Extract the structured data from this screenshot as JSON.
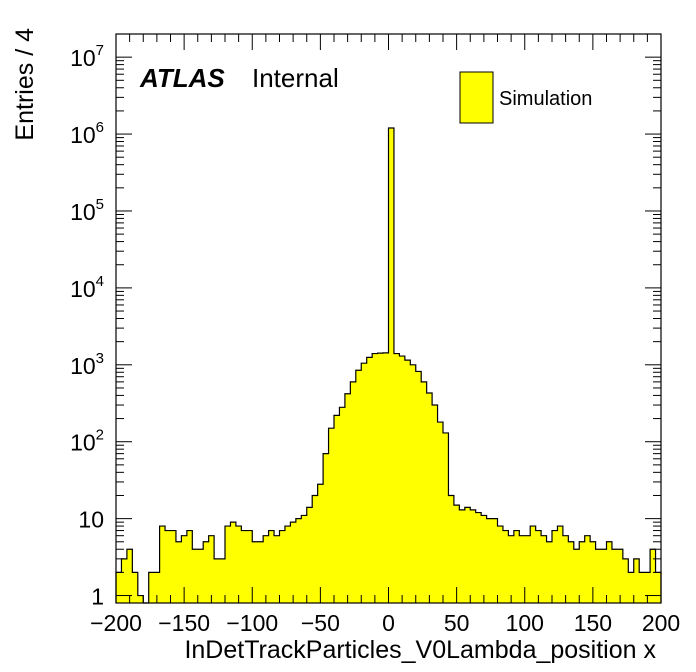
{
  "chart_data": {
    "type": "bar",
    "title": "",
    "xlabel": "InDetTrackParticles_V0Lambda_position x",
    "ylabel": "Entries / 4",
    "xlim": [
      -200,
      200
    ],
    "ylim": [
      0.8,
      20000000
    ],
    "y_scale": "log",
    "bin_width": 4,
    "x_ticks": [
      -200,
      -150,
      -100,
      -50,
      0,
      50,
      100,
      150,
      200
    ],
    "x_tick_labels": [
      "−200",
      "−150",
      "−100",
      "−50",
      "0",
      "50",
      "100",
      "150",
      "200"
    ],
    "y_ticks": [
      {
        "value": 1,
        "base": "1",
        "exp": ""
      },
      {
        "value": 10,
        "base": "10",
        "exp": ""
      },
      {
        "value": 100,
        "base": "10",
        "exp": "2"
      },
      {
        "value": 1000,
        "base": "10",
        "exp": "3"
      },
      {
        "value": 10000,
        "base": "10",
        "exp": "4"
      },
      {
        "value": 100000,
        "base": "10",
        "exp": "5"
      },
      {
        "value": 1000000,
        "base": "10",
        "exp": "6"
      },
      {
        "value": 10000000,
        "base": "10",
        "exp": "7"
      }
    ],
    "bin_low_edges": [
      -200,
      -196,
      -192,
      -188,
      -184,
      -180,
      -176,
      -172,
      -168,
      -164,
      -160,
      -156,
      -152,
      -148,
      -144,
      -140,
      -136,
      -132,
      -128,
      -124,
      -120,
      -116,
      -112,
      -108,
      -104,
      -100,
      -96,
      -92,
      -88,
      -84,
      -80,
      -76,
      -72,
      -68,
      -64,
      -60,
      -56,
      -52,
      -48,
      -44,
      -40,
      -36,
      -32,
      -28,
      -24,
      -20,
      -16,
      -12,
      -8,
      -4,
      0,
      4,
      8,
      12,
      16,
      20,
      24,
      28,
      32,
      36,
      40,
      44,
      48,
      52,
      56,
      60,
      64,
      68,
      72,
      76,
      80,
      84,
      88,
      92,
      96,
      100,
      104,
      108,
      112,
      116,
      120,
      124,
      128,
      132,
      136,
      140,
      144,
      148,
      152,
      156,
      160,
      164,
      168,
      172,
      176,
      180,
      184,
      188,
      192,
      196
    ],
    "values": [
      2,
      3,
      4,
      2,
      1,
      0,
      2,
      2,
      8,
      7,
      7,
      5,
      6,
      7,
      4,
      4,
      5,
      6,
      3,
      3,
      8,
      9,
      8,
      7,
      7,
      5,
      5,
      6,
      7,
      6,
      7,
      8,
      9,
      10,
      11,
      14,
      20,
      28,
      70,
      150,
      220,
      280,
      420,
      600,
      850,
      1050,
      1250,
      1400,
      1420,
      1430,
      1200000,
      1400,
      1300,
      1150,
      1000,
      820,
      600,
      430,
      300,
      180,
      130,
      20,
      15,
      13,
      14,
      13,
      12,
      11,
      10,
      10,
      8,
      7,
      6,
      7,
      6,
      6,
      8,
      7,
      6,
      5,
      7,
      8,
      6,
      5,
      4,
      5,
      6,
      5,
      4,
      4,
      5,
      4,
      4,
      3,
      2,
      3,
      2,
      2,
      4,
      2
    ],
    "legend": {
      "position": "top-right",
      "entries": [
        {
          "label": "Simulation",
          "color": "#ffff00"
        }
      ]
    },
    "fill_color": "#ffff00",
    "line_color": "#000000",
    "annotation": {
      "bold_italic": "ATLAS",
      "normal": "Internal"
    },
    "grid": false
  }
}
